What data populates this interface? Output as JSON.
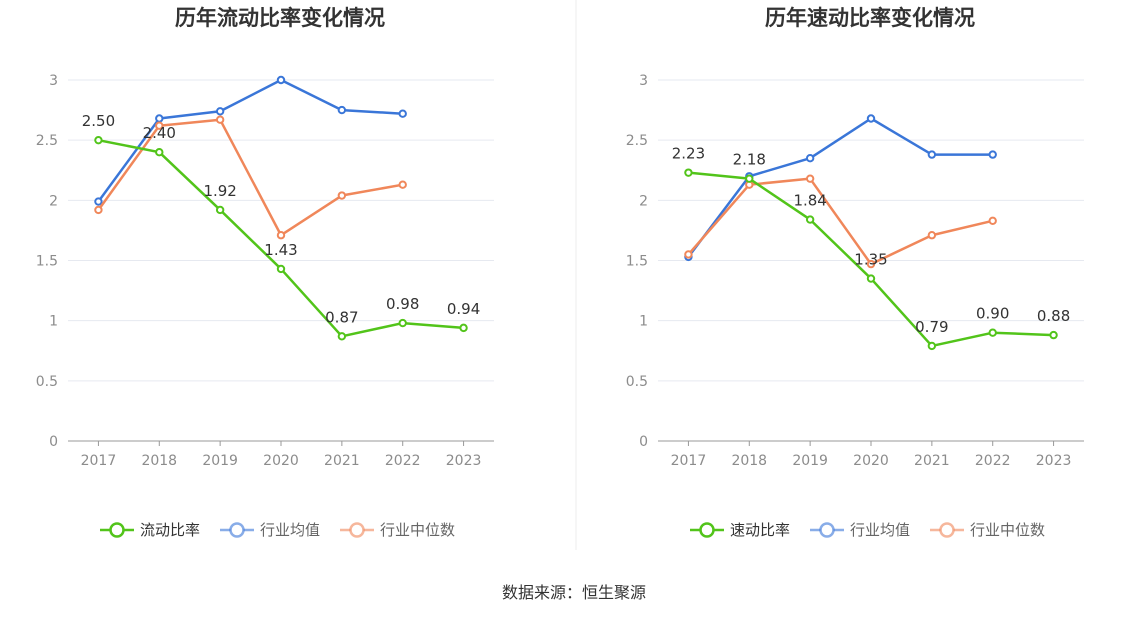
{
  "source_label": "数据来源：恒生聚源",
  "chart_data": [
    {
      "type": "line",
      "title": "历年流动比率变化情况",
      "categories": [
        "2017",
        "2018",
        "2019",
        "2020",
        "2021",
        "2022",
        "2023"
      ],
      "ylim": [
        0,
        3
      ],
      "yticks": [
        "0",
        "0.5",
        "1",
        "1.5",
        "2",
        "2.5",
        "3"
      ],
      "grid": true,
      "legend_position": "bottom-center",
      "series": [
        {
          "name": "流动比率",
          "color": "#52c41a",
          "values": [
            2.5,
            2.4,
            1.92,
            1.43,
            0.87,
            0.98,
            0.94
          ],
          "labels": [
            "2.50",
            "2.40",
            "1.92",
            "1.43",
            "0.87",
            "0.98",
            "0.94"
          ]
        },
        {
          "name": "行业均值",
          "color": "#3a76d8",
          "values": [
            1.99,
            2.68,
            2.74,
            3.0,
            2.75,
            2.72,
            null
          ]
        },
        {
          "name": "行业中位数",
          "color": "#f0875a",
          "values": [
            1.92,
            2.62,
            2.67,
            1.71,
            2.04,
            2.13,
            null
          ]
        }
      ]
    },
    {
      "type": "line",
      "title": "历年速动比率变化情况",
      "categories": [
        "2017",
        "2018",
        "2019",
        "2020",
        "2021",
        "2022",
        "2023"
      ],
      "ylim": [
        0,
        3
      ],
      "yticks": [
        "0",
        "0.5",
        "1",
        "1.5",
        "2",
        "2.5",
        "3"
      ],
      "grid": true,
      "legend_position": "bottom-center",
      "series": [
        {
          "name": "速动比率",
          "color": "#52c41a",
          "values": [
            2.23,
            2.18,
            1.84,
            1.35,
            0.79,
            0.9,
            0.88
          ],
          "labels": [
            "2.23",
            "2.18",
            "1.84",
            "1.35",
            "0.79",
            "0.90",
            "0.88"
          ]
        },
        {
          "name": "行业均值",
          "color": "#3a76d8",
          "values": [
            1.53,
            2.2,
            2.35,
            2.68,
            2.38,
            2.38,
            null
          ]
        },
        {
          "name": "行业中位数",
          "color": "#f0875a",
          "values": [
            1.55,
            2.13,
            2.18,
            1.47,
            1.71,
            1.83,
            null
          ]
        }
      ]
    }
  ]
}
